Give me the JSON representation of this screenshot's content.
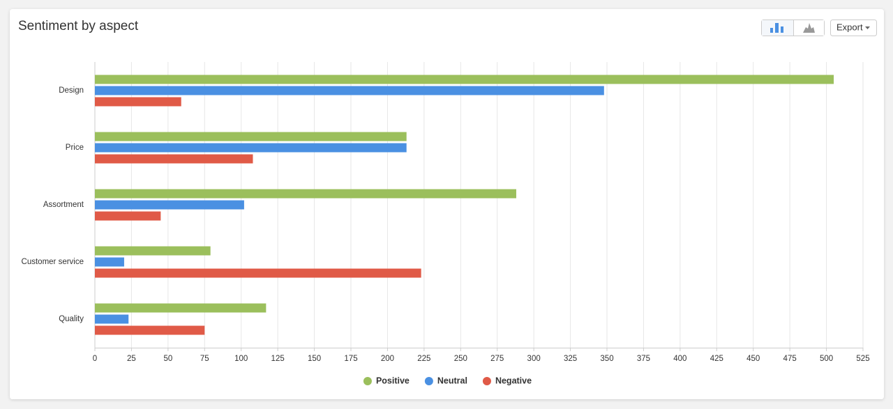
{
  "toolbar": {
    "export": "Export"
  },
  "chart_data": {
    "type": "bar",
    "orientation": "horizontal",
    "title": "Sentiment by aspect",
    "categories": [
      "Design",
      "Price",
      "Assortment",
      "Customer service",
      "Quality"
    ],
    "series": [
      {
        "name": "Positive",
        "color": "#9bbf5c",
        "values": [
          505,
          213,
          288,
          79,
          117
        ]
      },
      {
        "name": "Neutral",
        "color": "#4a90e2",
        "values": [
          348,
          213,
          102,
          20,
          23
        ]
      },
      {
        "name": "Negative",
        "color": "#e05a47",
        "values": [
          59,
          108,
          45,
          223,
          75
        ]
      }
    ],
    "xlim": [
      0,
      525
    ],
    "xticks": [
      0,
      25,
      50,
      75,
      100,
      125,
      150,
      175,
      200,
      225,
      250,
      275,
      300,
      325,
      350,
      375,
      400,
      425,
      450,
      475,
      500,
      525
    ],
    "grid": true,
    "legend": "bottom"
  }
}
